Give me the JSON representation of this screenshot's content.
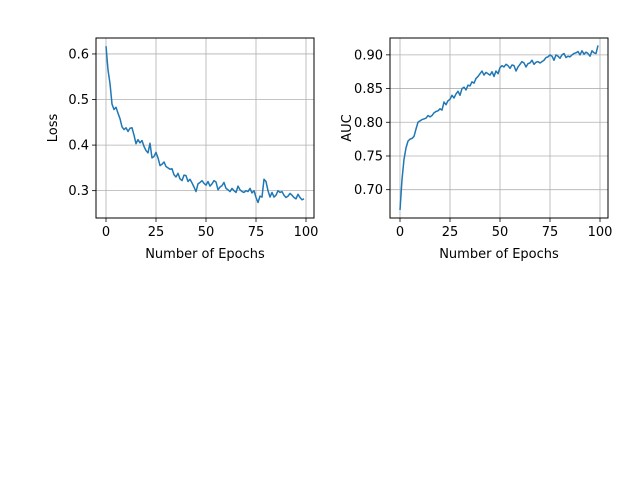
{
  "chart_data": [
    {
      "type": "line",
      "title": "",
      "xlabel": "Number of Epochs",
      "ylabel": "Loss",
      "xlim": [
        -5,
        104
      ],
      "ylim": [
        0.24,
        0.635
      ],
      "xticks": [
        0,
        25,
        50,
        75,
        100
      ],
      "xtick_labels": [
        "0",
        "25",
        "50",
        "75",
        "100"
      ],
      "yticks": [
        0.3,
        0.4,
        0.5,
        0.6
      ],
      "ytick_labels": [
        "0.3",
        "0.4",
        "0.5",
        "0.6"
      ],
      "grid": true,
      "legend": "none",
      "color": "#1f77b4",
      "series": [
        {
          "x": [
            0,
            1,
            2,
            3,
            4,
            5,
            6,
            7,
            8,
            9,
            10,
            11,
            12,
            13,
            14,
            15,
            16,
            17,
            18,
            19,
            20,
            21,
            22,
            23,
            24,
            25,
            26,
            27,
            28,
            29,
            30,
            31,
            32,
            33,
            34,
            35,
            36,
            37,
            38,
            39,
            40,
            41,
            42,
            43,
            44,
            45,
            46,
            47,
            48,
            49,
            50,
            51,
            52,
            53,
            54,
            55,
            56,
            57,
            58,
            59,
            60,
            61,
            62,
            63,
            64,
            65,
            66,
            67,
            68,
            69,
            70,
            71,
            72,
            73,
            74,
            75,
            76,
            77,
            78,
            79,
            80,
            81,
            82,
            83,
            84,
            85,
            86,
            87,
            88,
            89,
            90,
            91,
            92,
            93,
            94,
            95,
            96,
            97,
            98,
            99
          ],
          "values": [
            0.617,
            0.565,
            0.535,
            0.49,
            0.478,
            0.483,
            0.47,
            0.458,
            0.44,
            0.434,
            0.438,
            0.43,
            0.437,
            0.438,
            0.422,
            0.403,
            0.412,
            0.405,
            0.41,
            0.397,
            0.388,
            0.383,
            0.404,
            0.372,
            0.375,
            0.384,
            0.372,
            0.355,
            0.358,
            0.363,
            0.353,
            0.35,
            0.347,
            0.348,
            0.335,
            0.33,
            0.338,
            0.326,
            0.322,
            0.334,
            0.333,
            0.32,
            0.325,
            0.317,
            0.308,
            0.298,
            0.315,
            0.318,
            0.322,
            0.316,
            0.312,
            0.32,
            0.31,
            0.315,
            0.322,
            0.319,
            0.302,
            0.308,
            0.311,
            0.318,
            0.305,
            0.302,
            0.298,
            0.305,
            0.3,
            0.296,
            0.31,
            0.302,
            0.298,
            0.296,
            0.3,
            0.298,
            0.305,
            0.295,
            0.3,
            0.285,
            0.274,
            0.288,
            0.286,
            0.325,
            0.32,
            0.3,
            0.286,
            0.296,
            0.286,
            0.29,
            0.3,
            0.296,
            0.298,
            0.29,
            0.285,
            0.288,
            0.294,
            0.29,
            0.285,
            0.282,
            0.292,
            0.285,
            0.28,
            0.282
          ]
        }
      ]
    },
    {
      "type": "line",
      "title": "",
      "xlabel": "Number of Epochs",
      "ylabel": "AUC",
      "xlim": [
        -5,
        104
      ],
      "ylim": [
        0.658,
        0.925
      ],
      "xticks": [
        0,
        25,
        50,
        75,
        100
      ],
      "xtick_labels": [
        "0",
        "25",
        "50",
        "75",
        "100"
      ],
      "yticks": [
        0.7,
        0.75,
        0.8,
        0.85,
        0.9
      ],
      "ytick_labels": [
        "0.70",
        "0.75",
        "0.80",
        "0.85",
        "0.90"
      ],
      "grid": true,
      "legend": "none",
      "color": "#1f77b4",
      "series": [
        {
          "x": [
            0,
            1,
            2,
            3,
            4,
            5,
            6,
            7,
            8,
            9,
            10,
            11,
            12,
            13,
            14,
            15,
            16,
            17,
            18,
            19,
            20,
            21,
            22,
            23,
            24,
            25,
            26,
            27,
            28,
            29,
            30,
            31,
            32,
            33,
            34,
            35,
            36,
            37,
            38,
            39,
            40,
            41,
            42,
            43,
            44,
            45,
            46,
            47,
            48,
            49,
            50,
            51,
            52,
            53,
            54,
            55,
            56,
            57,
            58,
            59,
            60,
            61,
            62,
            63,
            64,
            65,
            66,
            67,
            68,
            69,
            70,
            71,
            72,
            73,
            74,
            75,
            76,
            77,
            78,
            79,
            80,
            81,
            82,
            83,
            84,
            85,
            86,
            87,
            88,
            89,
            90,
            91,
            92,
            93,
            94,
            95,
            96,
            97,
            98,
            99
          ],
          "values": [
            0.67,
            0.715,
            0.745,
            0.762,
            0.772,
            0.775,
            0.776,
            0.779,
            0.79,
            0.8,
            0.802,
            0.804,
            0.805,
            0.806,
            0.81,
            0.808,
            0.81,
            0.814,
            0.816,
            0.817,
            0.82,
            0.818,
            0.83,
            0.826,
            0.832,
            0.834,
            0.84,
            0.836,
            0.842,
            0.846,
            0.84,
            0.85,
            0.852,
            0.848,
            0.855,
            0.854,
            0.86,
            0.858,
            0.865,
            0.868,
            0.872,
            0.876,
            0.87,
            0.874,
            0.872,
            0.87,
            0.875,
            0.868,
            0.876,
            0.872,
            0.881,
            0.884,
            0.882,
            0.886,
            0.884,
            0.88,
            0.885,
            0.884,
            0.876,
            0.882,
            0.886,
            0.89,
            0.888,
            0.882,
            0.887,
            0.888,
            0.892,
            0.886,
            0.889,
            0.89,
            0.888,
            0.89,
            0.892,
            0.896,
            0.897,
            0.9,
            0.898,
            0.892,
            0.9,
            0.898,
            0.895,
            0.9,
            0.902,
            0.896,
            0.898,
            0.897,
            0.9,
            0.902,
            0.903,
            0.905,
            0.9,
            0.906,
            0.901,
            0.904,
            0.902,
            0.898,
            0.906,
            0.903,
            0.902,
            0.914
          ]
        }
      ]
    }
  ]
}
